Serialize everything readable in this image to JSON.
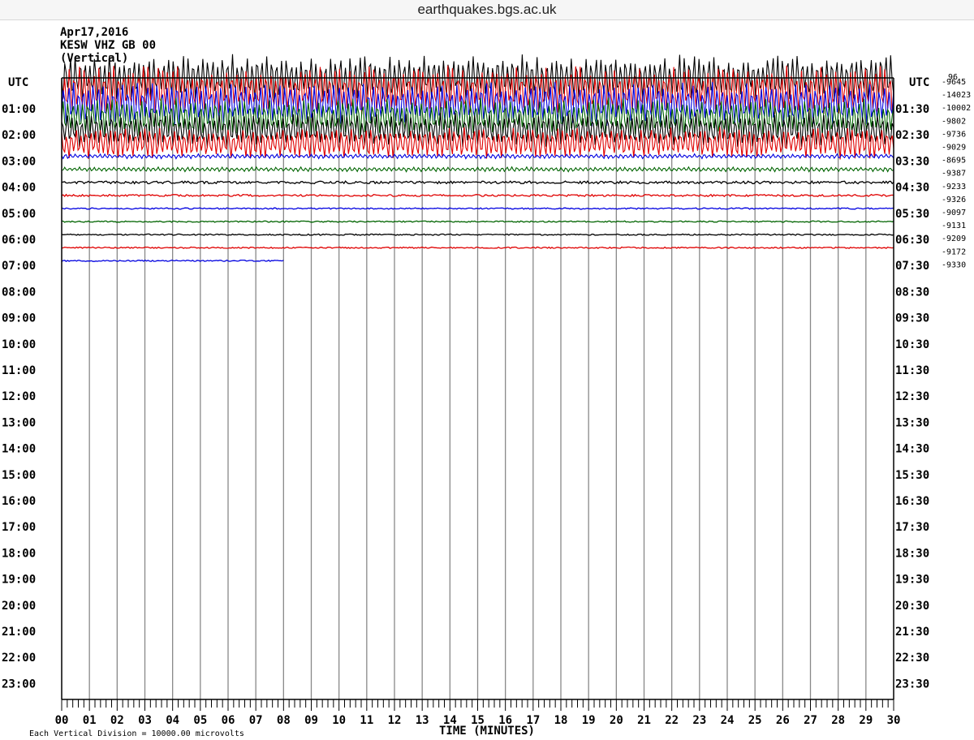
{
  "browser": {
    "url": "earthquakes.bgs.ac.uk"
  },
  "chart_data": {
    "type": "line",
    "header": [
      "Apr17,2016",
      "KESW VHZ GB 00",
      "(Vertical)"
    ],
    "utc_label_left": "UTC",
    "utc_label_right": "UTC",
    "left_times": [
      "01:00",
      "02:00",
      "03:00",
      "04:00",
      "05:00",
      "06:00",
      "07:00",
      "08:00",
      "09:00",
      "10:00",
      "11:00",
      "12:00",
      "13:00",
      "14:00",
      "15:00",
      "16:00",
      "17:00",
      "18:00",
      "19:00",
      "20:00",
      "21:00",
      "22:00",
      "23:00"
    ],
    "right_times": [
      "01:30",
      "02:30",
      "03:30",
      "04:30",
      "05:30",
      "06:30",
      "07:30",
      "08:30",
      "09:30",
      "10:30",
      "11:30",
      "12:30",
      "13:30",
      "14:30",
      "15:30",
      "16:30",
      "17:30",
      "18:30",
      "19:30",
      "20:30",
      "21:30",
      "22:30",
      "23:30"
    ],
    "offsets": [
      "-9645",
      "-14023",
      "-10002",
      "-9802",
      "-9736",
      "-9029",
      "-8695",
      "-9387",
      "-9233",
      "-9326",
      "-9097",
      "-9131",
      "-9209",
      "-9172",
      "-9330"
    ],
    "offset_top_label": "96",
    "x_ticks": [
      "00",
      "01",
      "02",
      "03",
      "04",
      "05",
      "06",
      "07",
      "08",
      "09",
      "10",
      "11",
      "12",
      "13",
      "14",
      "15",
      "16",
      "17",
      "18",
      "19",
      "20",
      "21",
      "22",
      "23",
      "24",
      "25",
      "26",
      "27",
      "28",
      "29",
      "30"
    ],
    "xlabel": "TIME (MINUTES)",
    "footnote": "Each Vertical Division = 10000.00 microvolts",
    "xlim": [
      0,
      30
    ],
    "trace_colors": [
      "#000000",
      "#e00000",
      "#0000e0",
      "#006400"
    ],
    "trace_amplitudes": [
      30,
      32,
      28,
      24,
      22,
      20,
      3,
      3,
      2,
      1.5,
      1,
      1,
      1,
      1,
      1
    ],
    "last_trace_end_minute": 8
  }
}
